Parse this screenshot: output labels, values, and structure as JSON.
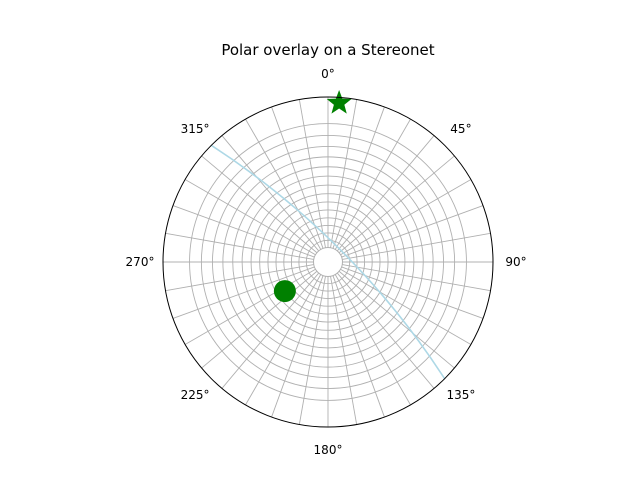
{
  "title": "Polar overlay on a Stereonet",
  "chart_data": {
    "type": "scatter",
    "projection": "polar-stereonet",
    "title": "Polar overlay on a Stereonet",
    "angle_tick_labels": [
      "0°",
      "45°",
      "90°",
      "135°",
      "180°",
      "225°",
      "270°",
      "315°"
    ],
    "theta_direction": "clockwise",
    "theta_zero": "N",
    "grid": true,
    "colors": {
      "grid": "#b0b0b0",
      "frame": "#000000",
      "markers": "#008000",
      "great_circle": "#add8e6"
    },
    "series": [
      {
        "marker": "star",
        "color": "#008000",
        "points": [
          {
            "bearing": 4,
            "plunge": 2
          }
        ]
      },
      {
        "marker": "circle",
        "color": "#008000",
        "points": [
          {
            "bearing": 236,
            "plunge": 55
          }
        ]
      },
      {
        "marker": "line",
        "color": "#add8e6",
        "great_circle": {
          "strike": 315,
          "dip": 78
        }
      }
    ]
  }
}
